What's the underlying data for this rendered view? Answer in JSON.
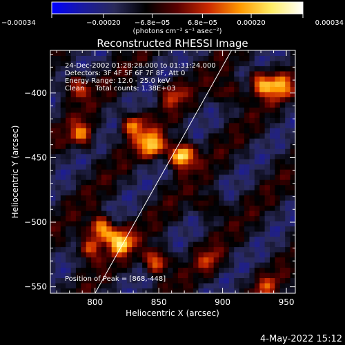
{
  "chart_data": {
    "type": "heatmap",
    "title": "Reconstructed RHESSI Image",
    "xlabel": "Heliocentric X (arcsec)",
    "ylabel": "Heliocentric Y (arcsec)",
    "xlim": [
      765,
      957
    ],
    "ylim": [
      -555,
      -367
    ],
    "x_ticks": [
      800,
      850,
      900,
      950
    ],
    "x_tick_labels": [
      "800",
      "850",
      "900",
      "950"
    ],
    "y_ticks": [
      -400,
      -450,
      -500,
      -550
    ],
    "y_tick_labels": [
      "−400",
      "−450",
      "−500",
      "−550"
    ],
    "colorbar": {
      "range": [
        -0.00034,
        0.00034
      ],
      "tick_values": [
        -0.00034,
        -0.0002,
        -6.8e-05,
        6.8e-05,
        0.0002,
        0.00034
      ],
      "tick_labels": [
        "−0.00034",
        "−0.00020",
        "−6.8e−05",
        "6.8e−05",
        "0.00020",
        "0.00034"
      ],
      "units_label": "(photons cm⁻² s⁻¹ asec⁻²)",
      "colormap": [
        "#0000ff",
        "#1a1aa0",
        "#2a2a5a",
        "#000000",
        "#5a0000",
        "#cc2a00",
        "#ff9900",
        "#ffee66",
        "#ffffff"
      ]
    },
    "annotations": [
      "24-Dec-2002 01:28:28.000 to 01:31:24.000",
      "Detectors: 3F 4F 5F 6F 7F 8F, Att 0",
      "Energy Range: 12.0 - 25.0 keV",
      "Clean     Total counts: 1.38E+03"
    ],
    "peak_label": "Position of Peak = [868,-448]",
    "peak": [
      868,
      -448
    ],
    "limb_line": [
      [
        800,
        -555
      ],
      [
        907,
        -367
      ]
    ],
    "hotspots": [
      {
        "x": 868,
        "y": -448,
        "amp": 1.0
      },
      {
        "x": 845,
        "y": -440,
        "amp": 0.75
      },
      {
        "x": 830,
        "y": -425,
        "amp": 0.6
      },
      {
        "x": 805,
        "y": -505,
        "amp": 0.8
      },
      {
        "x": 820,
        "y": -515,
        "amp": 0.75
      },
      {
        "x": 795,
        "y": -520,
        "amp": 0.55
      },
      {
        "x": 848,
        "y": -530,
        "amp": 0.7
      },
      {
        "x": 790,
        "y": -432,
        "amp": 0.55
      },
      {
        "x": 785,
        "y": -395,
        "amp": 0.5
      },
      {
        "x": 930,
        "y": -392,
        "amp": 0.65
      },
      {
        "x": 945,
        "y": -395,
        "amp": 0.55
      },
      {
        "x": 905,
        "y": -400,
        "amp": 0.4
      },
      {
        "x": 890,
        "y": -487,
        "amp": 0.35
      },
      {
        "x": 890,
        "y": -530,
        "amp": 0.3
      },
      {
        "x": 935,
        "y": -550,
        "amp": 0.3
      },
      {
        "x": 860,
        "y": -400,
        "amp": 0.4
      }
    ]
  },
  "footer": {
    "timestamp": "4-May-2022 15:12"
  }
}
